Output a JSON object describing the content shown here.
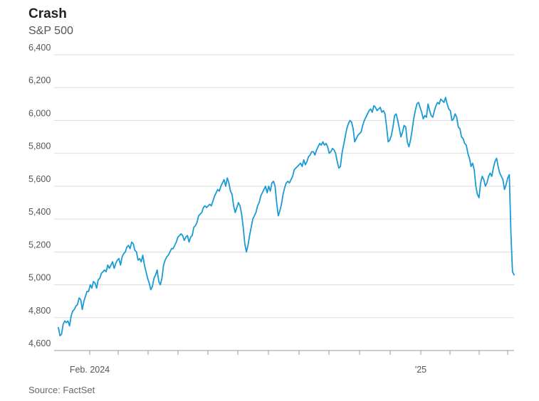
{
  "title": "Crash",
  "subtitle": "S&P 500",
  "source": "Source: FactSet",
  "chart_data": {
    "type": "line",
    "title": "Crash",
    "subtitle": "S&P 500",
    "xlabel": "",
    "ylabel": "",
    "x_tick_labels": [
      "Feb. 2024",
      "'25"
    ],
    "ylim": [
      4600,
      6400
    ],
    "y_ticks": [
      4600,
      4800,
      5000,
      5200,
      5400,
      5600,
      5800,
      6000,
      6200,
      6400
    ],
    "y_tick_labels": [
      "4,600",
      "4,800",
      "5,000",
      "5,200",
      "5,400",
      "5,600",
      "5,800",
      "6,000",
      "6,200",
      "6,400"
    ],
    "grid": true,
    "line_color": "#1a9ad6",
    "series": [
      {
        "values": [
          4740,
          4690,
          4700,
          4760,
          4780,
          4770,
          4780,
          4750,
          4810,
          4840,
          4850,
          4870,
          4880,
          4920,
          4910,
          4850,
          4900,
          4930,
          4960,
          4960,
          5000,
          4980,
          5020,
          5010,
          4980,
          5030,
          5040,
          5070,
          5080,
          5090,
          5080,
          5120,
          5100,
          5120,
          5140,
          5100,
          5130,
          5150,
          5160,
          5120,
          5170,
          5190,
          5200,
          5230,
          5240,
          5220,
          5260,
          5250,
          5210,
          5200,
          5150,
          5160,
          5140,
          5180,
          5120,
          5080,
          5040,
          5010,
          4970,
          4990,
          5040,
          5060,
          5090,
          5020,
          5000,
          5040,
          5120,
          5150,
          5170,
          5180,
          5200,
          5220,
          5220,
          5240,
          5260,
          5290,
          5300,
          5310,
          5300,
          5270,
          5290,
          5300,
          5260,
          5290,
          5300,
          5350,
          5360,
          5380,
          5420,
          5430,
          5440,
          5470,
          5480,
          5470,
          5480,
          5490,
          5480,
          5510,
          5540,
          5560,
          5580,
          5570,
          5600,
          5620,
          5640,
          5600,
          5650,
          5620,
          5570,
          5550,
          5480,
          5440,
          5470,
          5500,
          5480,
          5430,
          5350,
          5250,
          5200,
          5240,
          5300,
          5350,
          5400,
          5420,
          5440,
          5480,
          5500,
          5540,
          5560,
          5580,
          5600,
          5560,
          5600,
          5570,
          5620,
          5630,
          5600,
          5500,
          5420,
          5450,
          5490,
          5550,
          5590,
          5620,
          5630,
          5620,
          5640,
          5660,
          5700,
          5710,
          5720,
          5730,
          5740,
          5720,
          5760,
          5730,
          5750,
          5780,
          5790,
          5810,
          5810,
          5790,
          5820,
          5840,
          5860,
          5850,
          5870,
          5850,
          5860,
          5840,
          5800,
          5810,
          5830,
          5820,
          5800,
          5750,
          5710,
          5720,
          5800,
          5850,
          5900,
          5950,
          5980,
          6000,
          5990,
          5950,
          5870,
          5890,
          5910,
          5920,
          5930,
          5970,
          6000,
          6020,
          6040,
          6060,
          6070,
          6050,
          6090,
          6080,
          6060,
          6070,
          6080,
          6050,
          6060,
          6040,
          5960,
          5870,
          5880,
          5910,
          5960,
          6030,
          6040,
          6000,
          5950,
          5900,
          5930,
          5970,
          5960,
          5870,
          5840,
          5880,
          5940,
          6010,
          6060,
          6100,
          6110,
          6080,
          6050,
          6010,
          6030,
          6020,
          6100,
          6060,
          6030,
          6020,
          6060,
          6090,
          6110,
          6100,
          6130,
          6120,
          6110,
          6140,
          6100,
          6070,
          6060,
          6000,
          6010,
          6040,
          6020,
          5960,
          5950,
          5900,
          5890,
          5860,
          5850,
          5800,
          5770,
          5720,
          5740,
          5700,
          5600,
          5550,
          5530,
          5620,
          5660,
          5640,
          5600,
          5620,
          5660,
          5680,
          5660,
          5710,
          5750,
          5770,
          5720,
          5680,
          5660,
          5640,
          5580,
          5610,
          5650,
          5670,
          5320,
          5080,
          5060
        ]
      }
    ]
  }
}
